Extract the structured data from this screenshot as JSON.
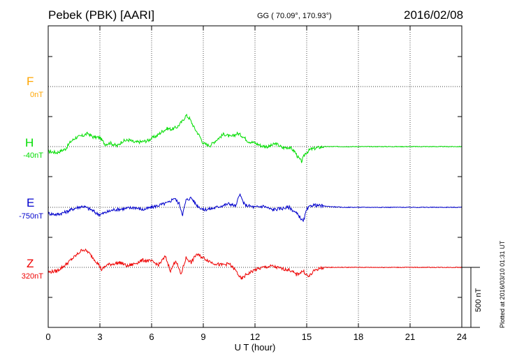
{
  "header": {
    "station": "Pebek (PBK)  [AARI]",
    "coords": "GG ( 70.09°, 170.93°)",
    "date": "2016/02/08"
  },
  "channels": [
    {
      "name": "F",
      "baseline": "0nT",
      "color": "#ffa500"
    },
    {
      "name": "H",
      "baseline": "-40nT",
      "color": "#00dd00"
    },
    {
      "name": "E",
      "baseline": "-750nT",
      "color": "#0000cc"
    },
    {
      "name": "Z",
      "baseline": "320nT",
      "color": "#ee0000"
    }
  ],
  "scale_bar": {
    "label": "500 nT",
    "value": 500
  },
  "plotted_note": "Plotted at 2016/03/10 01:31  UT",
  "chart_data": {
    "type": "line",
    "xlabel": "U T (hour)",
    "xlim": [
      0,
      24
    ],
    "xticks": [
      0,
      3,
      6,
      9,
      12,
      15,
      18,
      21,
      24
    ],
    "grid": true,
    "series": [
      {
        "name": "H",
        "color": "#00dd00",
        "x": [
          0,
          0.5,
          1.0,
          1.3,
          1.6,
          2.0,
          2.3,
          2.6,
          3.0,
          3.3,
          3.6,
          4.0,
          4.3,
          4.7,
          5.0,
          5.4,
          5.8,
          6.0,
          6.3,
          6.6,
          6.9,
          7.2,
          7.5,
          7.8,
          8.0,
          8.2,
          8.5,
          8.8,
          9.0,
          9.4,
          9.8,
          10.2,
          10.6,
          11.0,
          11.3,
          11.6,
          12.0,
          12.4,
          12.8,
          13.2,
          13.6,
          14.0,
          14.3,
          14.5,
          14.7,
          14.9,
          15.2,
          15.6,
          16.0,
          17.0,
          18.0,
          20.0,
          22.0,
          24.0
        ],
        "values": [
          -40,
          -50,
          -20,
          40,
          75,
          90,
          110,
          80,
          75,
          20,
          30,
          5,
          45,
          55,
          35,
          40,
          50,
          70,
          90,
          125,
          150,
          145,
          165,
          215,
          260,
          235,
          150,
          85,
          25,
          10,
          60,
          105,
          80,
          110,
          85,
          45,
          30,
          5,
          0,
          25,
          -10,
          -5,
          -40,
          -90,
          -125,
          -60,
          -25,
          -10,
          0,
          0,
          0,
          0,
          0,
          0
        ]
      },
      {
        "name": "E",
        "color": "#0000cc",
        "x": [
          0,
          0.5,
          1.0,
          1.5,
          2.0,
          2.5,
          2.8,
          3.0,
          3.3,
          3.8,
          4.5,
          5.0,
          5.5,
          6.0,
          6.5,
          7.0,
          7.3,
          7.6,
          7.8,
          8.0,
          8.3,
          8.6,
          9.0,
          9.5,
          10.0,
          10.5,
          10.9,
          11.1,
          11.4,
          12.0,
          12.5,
          13.0,
          13.5,
          14.0,
          14.4,
          14.6,
          14.8,
          15.0,
          15.3,
          16.0,
          17.0,
          18.0,
          20.0,
          22.0,
          24.0
        ],
        "values": [
          -50,
          -60,
          -40,
          -10,
          10,
          -20,
          -50,
          -60,
          -45,
          -20,
          -10,
          0,
          -20,
          0,
          20,
          40,
          80,
          30,
          -60,
          60,
          80,
          20,
          -20,
          -10,
          10,
          30,
          10,
          110,
          20,
          0,
          10,
          -20,
          -10,
          0,
          -50,
          -80,
          -120,
          -20,
          20,
          10,
          0,
          0,
          0,
          0,
          0
        ]
      },
      {
        "name": "Z",
        "color": "#ee0000",
        "x": [
          0,
          0.5,
          1.0,
          1.3,
          1.7,
          2.0,
          2.3,
          2.6,
          2.9,
          3.1,
          3.4,
          3.8,
          4.2,
          4.6,
          5.0,
          5.5,
          6.0,
          6.4,
          6.8,
          7.1,
          7.4,
          7.7,
          8.0,
          8.3,
          8.6,
          9.0,
          9.5,
          10.0,
          10.5,
          10.9,
          11.2,
          11.5,
          12.0,
          12.5,
          13.0,
          13.5,
          14.0,
          14.4,
          14.8,
          15.1,
          15.5,
          16.0,
          17.0,
          18.0,
          20.0,
          22.0,
          24.0
        ],
        "values": [
          -40,
          -30,
          20,
          60,
          110,
          150,
          130,
          80,
          30,
          -20,
          20,
          30,
          40,
          10,
          30,
          60,
          50,
          20,
          90,
          -30,
          60,
          -60,
          80,
          40,
          110,
          80,
          40,
          20,
          30,
          -30,
          -100,
          -60,
          -20,
          0,
          10,
          -10,
          -20,
          -60,
          -30,
          -80,
          -20,
          0,
          0,
          0,
          0,
          0,
          0
        ]
      }
    ]
  }
}
